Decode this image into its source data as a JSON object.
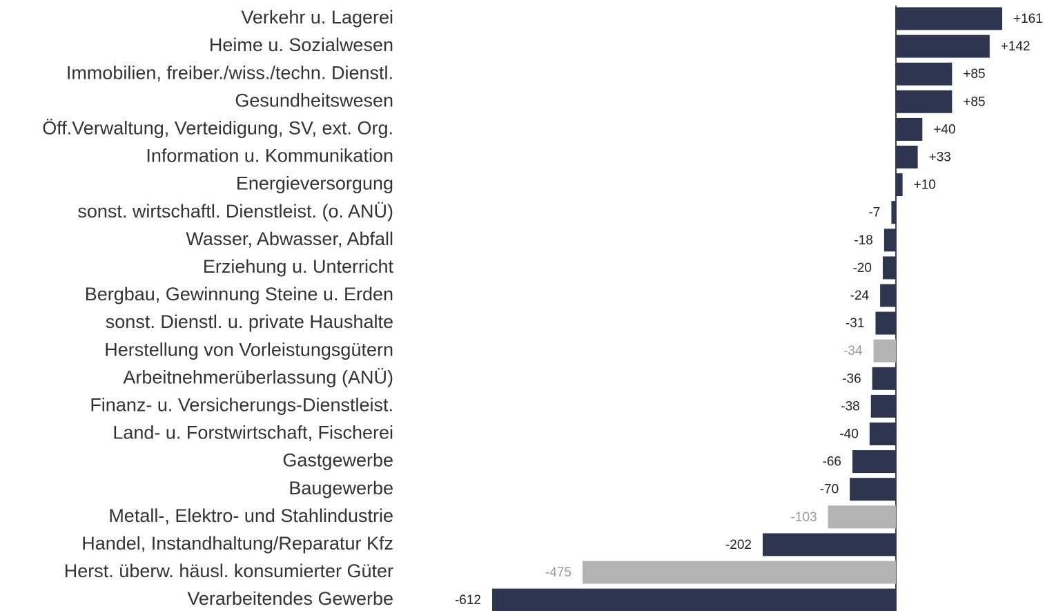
{
  "chart_data": {
    "type": "barh",
    "categories": [
      "Verkehr u. Lagerei",
      "Heime u. Sozialwesen",
      "Immobilien, freiber./wiss./techn. Dienstl.",
      "Gesundheitswesen",
      "Öff.Verwaltung, Verteidigung, SV, ext. Org.",
      "Information u. Kommunikation",
      "Energieversorgung",
      "sonst. wirtschaftl. Dienstleist. (o. ANÜ)",
      "Wasser, Abwasser, Abfall",
      "Erziehung u. Unterricht",
      "Bergbau, Gewinnung Steine u. Erden",
      "sonst. Dienstl. u. private Haushalte",
      "Herstellung von Vorleistungsgütern",
      "Arbeitnehmerüberlassung (ANÜ)",
      "Finanz- u. Versicherungs-Dienstleist.",
      "Land- u. Forstwirtschaft, Fischerei",
      "Gastgewerbe",
      "Baugewerbe",
      "Metall-, Elektro- und Stahlindustrie",
      "Handel, Instandhaltung/Reparatur Kfz",
      "Herst. überw. häusl. konsumierter Güter",
      "Verarbeitendes Gewerbe"
    ],
    "values": [
      161,
      142,
      85,
      85,
      40,
      33,
      10,
      -7,
      -18,
      -20,
      -24,
      -31,
      -34,
      -36,
      -38,
      -40,
      -66,
      -70,
      -103,
      -202,
      -475,
      -612
    ],
    "value_labels": [
      "+161",
      "+142",
      "+85",
      "+85",
      "+40",
      "+33",
      "+10",
      "-7",
      "-18",
      "-20",
      "-24",
      "-31",
      "-34",
      "-36",
      "-38",
      "-40",
      "-66",
      "-70",
      "-103",
      "-202",
      "-475",
      "-612"
    ],
    "colors": [
      "#2d354f",
      "#2d354f",
      "#2d354f",
      "#2d354f",
      "#2d354f",
      "#2d354f",
      "#2d354f",
      "#2d354f",
      "#2d354f",
      "#2d354f",
      "#2d354f",
      "#2d354f",
      "#b3b3b3",
      "#2d354f",
      "#2d354f",
      "#2d354f",
      "#2d354f",
      "#2d354f",
      "#b3b3b3",
      "#2d354f",
      "#b3b3b3",
      "#2d354f"
    ]
  }
}
